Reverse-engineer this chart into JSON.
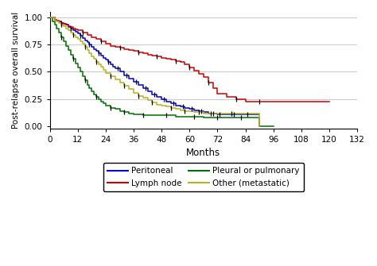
{
  "title": "",
  "xlabel": "Months",
  "ylabel": "Post-relapse overall survival",
  "xlim": [
    0,
    132
  ],
  "ylim": [
    -0.02,
    1.05
  ],
  "xticks": [
    0,
    12,
    24,
    36,
    48,
    60,
    72,
    84,
    96,
    108,
    120,
    132
  ],
  "yticks": [
    0.0,
    0.25,
    0.5,
    0.75,
    1.0
  ],
  "ytick_labels": [
    "0.00",
    "0.25",
    "0.50",
    "0.75",
    "1.00"
  ],
  "background_color": "#ffffff",
  "grid_color": "#c8c8c8",
  "peritoneal_t": [
    0,
    2,
    3,
    4,
    5,
    6,
    7,
    8,
    9,
    10,
    11,
    12,
    13,
    14,
    15,
    16,
    17,
    18,
    19,
    20,
    21,
    22,
    23,
    24,
    25,
    26,
    27,
    28,
    30,
    32,
    34,
    36,
    38,
    40,
    42,
    44,
    46,
    48,
    50,
    52,
    54,
    56,
    58,
    60,
    62,
    64,
    66,
    68,
    72,
    78,
    84,
    90
  ],
  "peritoneal_s": [
    1.0,
    0.98,
    0.97,
    0.96,
    0.95,
    0.94,
    0.93,
    0.91,
    0.9,
    0.88,
    0.87,
    0.85,
    0.83,
    0.81,
    0.79,
    0.77,
    0.75,
    0.73,
    0.71,
    0.69,
    0.67,
    0.65,
    0.63,
    0.61,
    0.59,
    0.57,
    0.55,
    0.53,
    0.5,
    0.47,
    0.44,
    0.41,
    0.38,
    0.35,
    0.32,
    0.29,
    0.27,
    0.25,
    0.23,
    0.21,
    0.19,
    0.18,
    0.17,
    0.16,
    0.15,
    0.14,
    0.13,
    0.12,
    0.11,
    0.11,
    0.11,
    0.11
  ],
  "lymph_t": [
    0,
    2,
    3,
    4,
    5,
    6,
    7,
    8,
    9,
    10,
    11,
    12,
    14,
    16,
    18,
    20,
    22,
    24,
    26,
    28,
    30,
    32,
    34,
    36,
    38,
    40,
    42,
    44,
    46,
    48,
    50,
    52,
    54,
    56,
    58,
    60,
    62,
    64,
    66,
    68,
    70,
    72,
    76,
    80,
    84,
    87,
    90,
    93,
    96,
    108,
    120
  ],
  "lymph_s": [
    1.0,
    0.98,
    0.97,
    0.96,
    0.95,
    0.94,
    0.93,
    0.92,
    0.91,
    0.9,
    0.89,
    0.88,
    0.86,
    0.84,
    0.82,
    0.8,
    0.78,
    0.76,
    0.74,
    0.73,
    0.72,
    0.71,
    0.7,
    0.69,
    0.68,
    0.67,
    0.66,
    0.65,
    0.64,
    0.63,
    0.62,
    0.61,
    0.6,
    0.59,
    0.57,
    0.54,
    0.51,
    0.48,
    0.45,
    0.4,
    0.35,
    0.3,
    0.27,
    0.25,
    0.23,
    0.23,
    0.23,
    0.23,
    0.23,
    0.23,
    0.23
  ],
  "pleural_t": [
    0,
    1,
    2,
    3,
    4,
    5,
    6,
    7,
    8,
    9,
    10,
    11,
    12,
    13,
    14,
    15,
    16,
    17,
    18,
    19,
    20,
    21,
    22,
    23,
    24,
    26,
    28,
    30,
    32,
    34,
    36,
    40,
    44,
    48,
    54,
    60,
    66,
    72,
    78,
    84,
    87,
    90,
    96
  ],
  "pleural_s": [
    1.0,
    0.96,
    0.93,
    0.9,
    0.86,
    0.82,
    0.78,
    0.74,
    0.7,
    0.66,
    0.62,
    0.58,
    0.54,
    0.5,
    0.46,
    0.42,
    0.38,
    0.35,
    0.32,
    0.29,
    0.27,
    0.25,
    0.23,
    0.21,
    0.19,
    0.17,
    0.16,
    0.14,
    0.13,
    0.12,
    0.11,
    0.1,
    0.1,
    0.1,
    0.09,
    0.09,
    0.08,
    0.08,
    0.08,
    0.08,
    0.08,
    0.0,
    0.0
  ],
  "other_t": [
    0,
    2,
    3,
    4,
    5,
    6,
    7,
    8,
    9,
    10,
    11,
    12,
    13,
    14,
    15,
    16,
    17,
    18,
    19,
    20,
    21,
    22,
    23,
    24,
    26,
    28,
    30,
    32,
    34,
    36,
    38,
    40,
    42,
    44,
    46,
    48,
    50,
    52,
    54,
    56,
    58,
    60,
    62,
    64,
    66,
    68,
    72,
    78,
    84,
    87,
    90
  ],
  "other_s": [
    1.0,
    0.97,
    0.96,
    0.95,
    0.93,
    0.92,
    0.9,
    0.88,
    0.86,
    0.84,
    0.82,
    0.8,
    0.78,
    0.76,
    0.73,
    0.7,
    0.67,
    0.64,
    0.62,
    0.59,
    0.57,
    0.55,
    0.52,
    0.49,
    0.46,
    0.43,
    0.4,
    0.37,
    0.34,
    0.31,
    0.28,
    0.26,
    0.24,
    0.22,
    0.2,
    0.19,
    0.18,
    0.17,
    0.16,
    0.15,
    0.14,
    0.14,
    0.13,
    0.13,
    0.12,
    0.12,
    0.12,
    0.12,
    0.12,
    0.12,
    0.0
  ],
  "peritoneal_censors_t": [
    5,
    9,
    13,
    17,
    21,
    25,
    29,
    33,
    37,
    41,
    45,
    49,
    53,
    57,
    61,
    65,
    69,
    73,
    79,
    85
  ],
  "lymph_censors_t": [
    14,
    22,
    30,
    38,
    46,
    54,
    60,
    68,
    80,
    90
  ],
  "pleural_censors_t": [
    5,
    10,
    15,
    20,
    26,
    32,
    40,
    50,
    62,
    72,
    82
  ],
  "other_censors_t": [
    5,
    10,
    15,
    20,
    26,
    32,
    38,
    44,
    52,
    58,
    64,
    70,
    78
  ]
}
